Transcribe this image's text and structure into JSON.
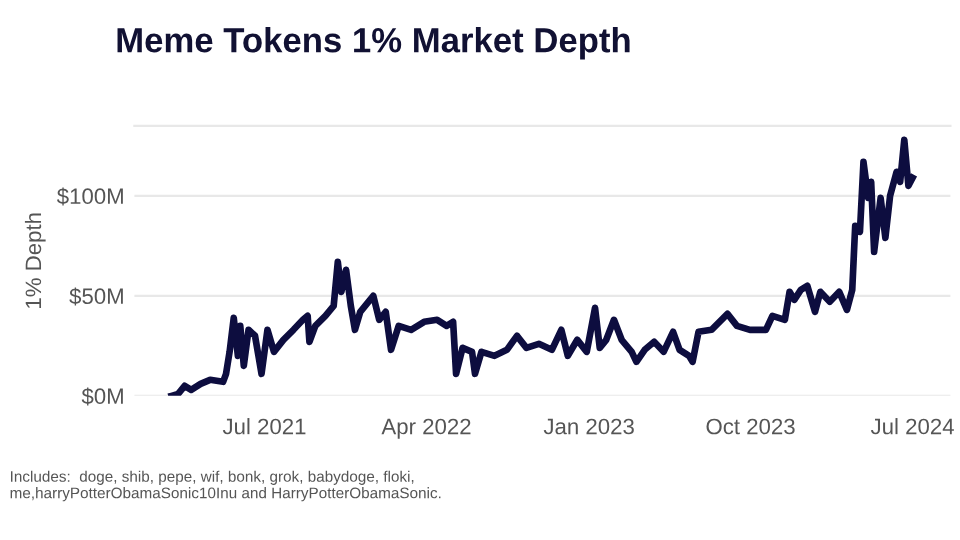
{
  "chart_data": {
    "type": "line",
    "title": "Meme Tokens 1% Market Depth",
    "ylabel": "1% Depth",
    "annotations": [
      "Includes:  doge, shib, pepe, wif, bonk, grok, babydoge, floki,\nme,harryPotterObamaSonic10Inu and HarryPotterObamaSonic."
    ],
    "x": [
      "2021-01-25",
      "2021-02-05",
      "2021-02-16",
      "2021-02-27",
      "2021-03-15",
      "2021-03-31",
      "2021-04-22",
      "2021-04-27",
      "2021-05-03",
      "2021-05-10",
      "2021-05-17",
      "2021-05-21",
      "2021-05-27",
      "2021-06-04",
      "2021-06-15",
      "2021-06-26",
      "2021-07-06",
      "2021-07-17",
      "2021-08-02",
      "2021-08-19",
      "2021-09-04",
      "2021-09-12",
      "2021-09-15",
      "2021-09-25",
      "2021-10-12",
      "2021-10-26",
      "2021-11-02",
      "2021-11-08",
      "2021-11-16",
      "2021-11-24",
      "2021-12-01",
      "2021-12-10",
      "2022-01-01",
      "2022-01-11",
      "2022-01-22",
      "2022-01-31",
      "2022-02-13",
      "2022-03-06",
      "2022-03-28",
      "2022-04-19",
      "2022-05-05",
      "2022-05-16",
      "2022-05-21",
      "2022-06-01",
      "2022-06-17",
      "2022-06-22",
      "2022-07-03",
      "2022-07-25",
      "2022-08-15",
      "2022-09-01",
      "2022-09-17",
      "2022-10-08",
      "2022-10-30",
      "2022-11-15",
      "2022-11-26",
      "2022-12-12",
      "2022-12-28",
      "2023-01-11",
      "2023-01-19",
      "2023-01-30",
      "2023-02-12",
      "2023-02-25",
      "2023-03-14",
      "2023-03-22",
      "2023-04-05",
      "2023-04-21",
      "2023-05-07",
      "2023-05-23",
      "2023-06-03",
      "2023-06-19",
      "2023-06-25",
      "2023-07-05",
      "2023-07-27",
      "2023-08-23",
      "2023-09-08",
      "2023-09-30",
      "2023-10-27",
      "2023-11-07",
      "2023-11-28",
      "2023-12-06",
      "2023-12-14",
      "2023-12-25",
      "2024-01-05",
      "2024-01-18",
      "2024-01-27",
      "2024-02-12",
      "2024-02-28",
      "2024-03-12",
      "2024-03-21",
      "2024-03-26",
      "2024-04-03",
      "2024-04-09",
      "2024-04-17",
      "2024-04-22",
      "2024-04-27",
      "2024-05-08",
      "2024-05-16",
      "2024-05-24",
      "2024-06-04",
      "2024-06-10",
      "2024-06-17",
      "2024-06-24",
      "2024-07-01"
    ],
    "series": [
      {
        "color": "#0d0d3f",
        "values": [
          0,
          1,
          5,
          3,
          6,
          8,
          7,
          11,
          22,
          39,
          20,
          35,
          15,
          33,
          30,
          11,
          33,
          22,
          28,
          33,
          38,
          40,
          27,
          35,
          40,
          45,
          67,
          52,
          63,
          45,
          33,
          42,
          50,
          38,
          42,
          23,
          35,
          33,
          37,
          38,
          35,
          37,
          11,
          24,
          22,
          11,
          22,
          20,
          23,
          30,
          24,
          26,
          23,
          33,
          20,
          28,
          22,
          44,
          24,
          28,
          38,
          28,
          22,
          17,
          23,
          27,
          22,
          32,
          23,
          20,
          17,
          32,
          33,
          41,
          35,
          33,
          33,
          40,
          38,
          52,
          48,
          53,
          55,
          42,
          52,
          47,
          52,
          43,
          53,
          85,
          82,
          117,
          99,
          107,
          72,
          99,
          79,
          100,
          112,
          107,
          128,
          105,
          109
        ]
      }
    ],
    "xlim": [
      "2020-11-23",
      "2024-09-03"
    ],
    "xticks": [
      {
        "value": "2021-07-01",
        "label": "Jul 2021"
      },
      {
        "value": "2022-04-01",
        "label": "Apr 2022"
      },
      {
        "value": "2023-01-01",
        "label": "Jan 2023"
      },
      {
        "value": "2023-10-01",
        "label": "Oct 2023"
      },
      {
        "value": "2024-07-01",
        "label": "Jul 2024"
      }
    ],
    "ylim": [
      0,
      135
    ],
    "yticks": [
      {
        "value": 0,
        "label": "$0M"
      },
      {
        "value": 50,
        "label": "$50M"
      },
      {
        "value": 100,
        "label": "$100M"
      }
    ],
    "grid": "y"
  }
}
